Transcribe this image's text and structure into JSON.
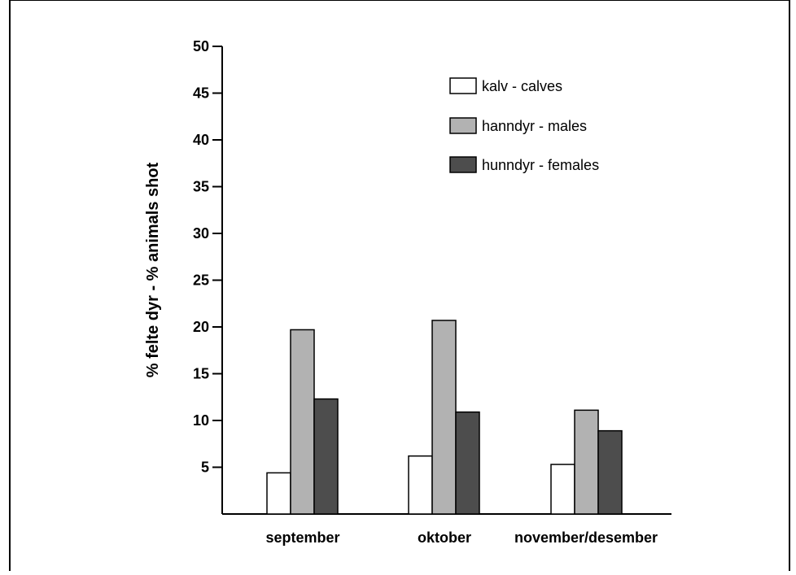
{
  "chart_data": {
    "type": "bar",
    "title": "",
    "xlabel": "",
    "ylabel": "% felte dyr - % animals shot",
    "ylim": [
      0,
      50
    ],
    "yticks": [
      5,
      10,
      15,
      20,
      25,
      30,
      35,
      40,
      45,
      50
    ],
    "categories": [
      "september",
      "oktober",
      "november/desember"
    ],
    "series": [
      {
        "name": "kalv - calves",
        "color": "#ffffff",
        "values": [
          4.4,
          6.2,
          5.3
        ]
      },
      {
        "name": "hanndyr - males",
        "color": "#b2b2b2",
        "values": [
          19.7,
          20.7,
          11.1
        ]
      },
      {
        "name": "hunndyr - females",
        "color": "#4d4d4d",
        "values": [
          12.3,
          10.9,
          8.9
        ]
      }
    ],
    "legend_position": "top-right",
    "grid": false
  }
}
